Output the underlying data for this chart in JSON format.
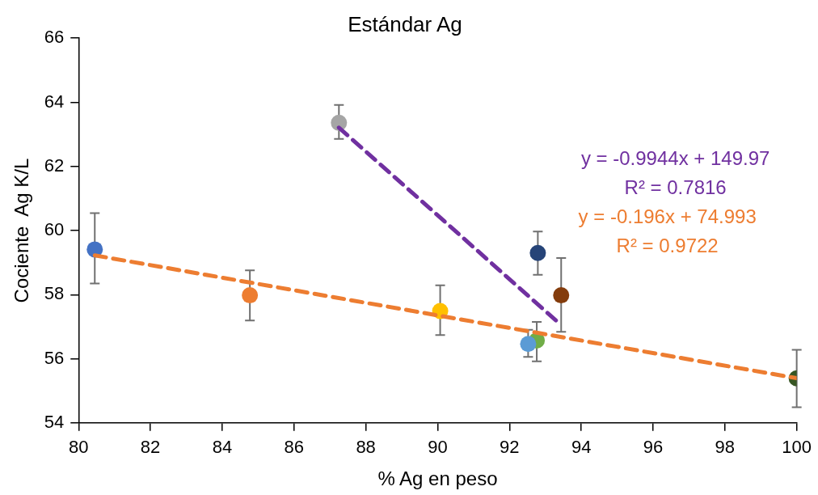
{
  "chart_data": {
    "type": "scatter",
    "title": "Estándar Ag",
    "xlabel": "% Ag en peso",
    "ylabel": "Cociente  Ag K/L",
    "xlim": [
      80,
      100
    ],
    "xticks": [
      80,
      82,
      84,
      86,
      88,
      90,
      92,
      94,
      96,
      98,
      100
    ],
    "ylim": [
      54,
      66
    ],
    "yticks": [
      54,
      56,
      58,
      60,
      62,
      64,
      66
    ],
    "grid": false,
    "legend": false,
    "marker": "circle",
    "series": [
      {
        "color": "#4472c4",
        "x": [
          80.45
        ],
        "values": [
          59.41
        ],
        "errors": [
          [
            58.35,
            60.54
          ]
        ]
      },
      {
        "color": "#ed7d31",
        "x": [
          84.77
        ],
        "values": [
          57.98
        ],
        "errors": [
          [
            57.19,
            58.76
          ]
        ]
      },
      {
        "color": "#a5a5a5",
        "x": [
          87.25
        ],
        "values": [
          63.36
        ],
        "errors": [
          [
            62.86,
            63.92
          ]
        ]
      },
      {
        "color": "#ffc000",
        "x": [
          90.07
        ],
        "values": [
          57.49
        ],
        "errors": [
          [
            56.74,
            58.29
          ]
        ]
      },
      {
        "color": "#5b9bd5",
        "x": [
          92.52
        ],
        "values": [
          56.46
        ],
        "errors": [
          [
            56.06,
            56.9
          ]
        ]
      },
      {
        "color": "#70ad47",
        "x": [
          92.76
        ],
        "values": [
          56.57
        ],
        "errors": [
          [
            55.92,
            57.15
          ]
        ]
      },
      {
        "color": "#264478",
        "x": [
          92.79
        ],
        "values": [
          59.3
        ],
        "errors": [
          [
            58.62,
            59.97
          ]
        ]
      },
      {
        "color": "#843c0c",
        "x": [
          93.44
        ],
        "values": [
          57.98
        ],
        "errors": [
          [
            56.84,
            59.14
          ]
        ]
      },
      {
        "color": "#375623",
        "x": [
          100
        ],
        "values": [
          55.39
        ],
        "errors": [
          [
            54.49,
            56.28
          ]
        ]
      },
      {
        "type": "line",
        "color": "#7030a0",
        "line_style": "dashed",
        "marker": "none",
        "x": [
          87.25,
          93.44
        ],
        "values": [
          63.21,
          57.05
        ]
      },
      {
        "type": "line",
        "color": "#ed7d31",
        "line_style": "dashed",
        "marker": "none",
        "x": [
          80.45,
          100
        ],
        "values": [
          59.225,
          55.393
        ]
      }
    ],
    "annotations": [
      "y = -0.9944x + 149.97",
      "R² = 0.7816",
      "y = -0.196x + 74.993",
      "R² = 0.9722"
    ]
  }
}
